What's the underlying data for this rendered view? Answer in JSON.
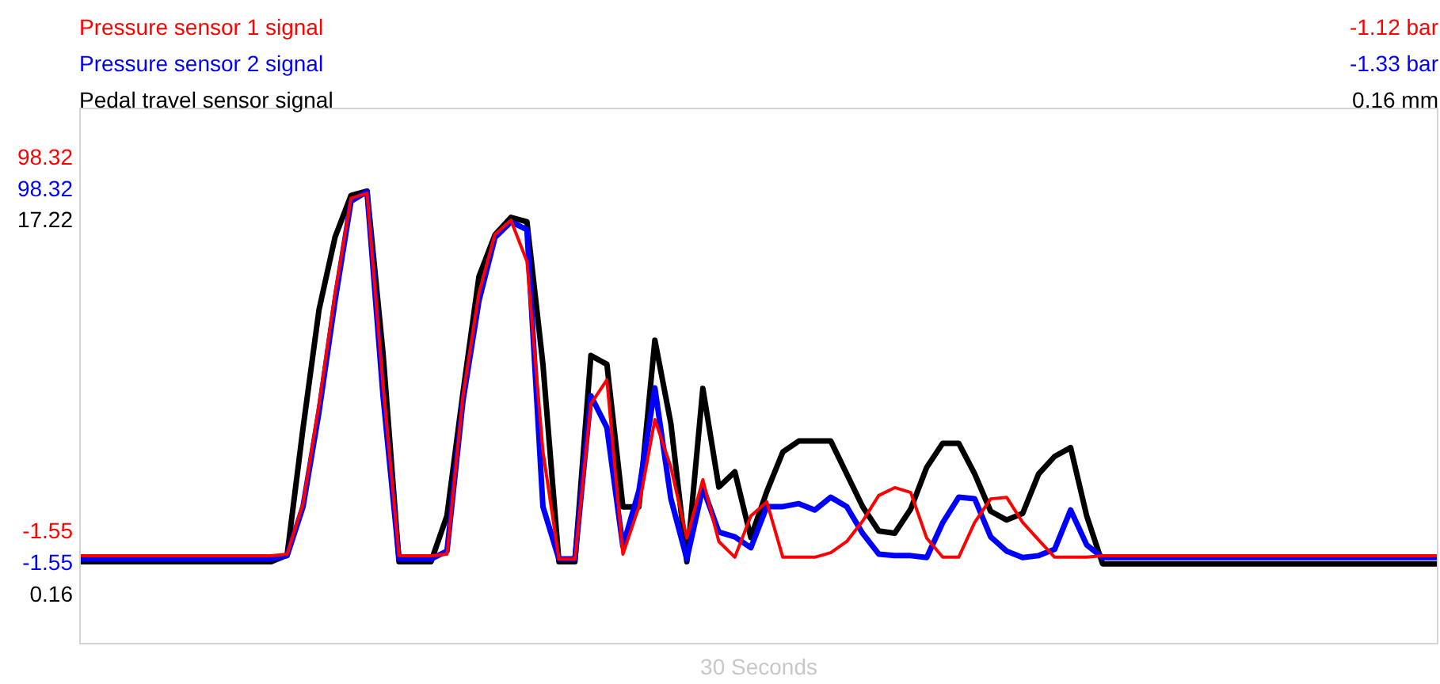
{
  "chart_data": {
    "type": "line",
    "xlabel": "30 Seconds",
    "legend": "top left",
    "annotations": [
      "-1.12 bar",
      "-1.33 bar",
      "0.16 mm"
    ],
    "categories": [
      null,
      null,
      null,
      null,
      null,
      null,
      null,
      null,
      null,
      null,
      null,
      null,
      null,
      null,
      null,
      null,
      null,
      null,
      null,
      null,
      null,
      null,
      null,
      null,
      null,
      null,
      null,
      null,
      null,
      null,
      null,
      null,
      null,
      null,
      null,
      null,
      null,
      null,
      null,
      null,
      null,
      null,
      null,
      null,
      null,
      null,
      null,
      null,
      null,
      null,
      null,
      null,
      null,
      null,
      null,
      null,
      null,
      null,
      null,
      null,
      null,
      null,
      null,
      null,
      null,
      null,
      null,
      null,
      null,
      null,
      null,
      null,
      null,
      null,
      null,
      null,
      null,
      null,
      null,
      null,
      null,
      null,
      null,
      null,
      null,
      null
    ],
    "series": [
      {
        "name": "Pressure sensor 1 signal",
        "color": "#ff0000",
        "values": [
          -7.9,
          -7.9,
          -7.9,
          -7.9,
          -7.9,
          -7.9,
          -7.9,
          -7.9,
          -7.9,
          -7.9,
          -7.9,
          -7.9,
          -7.9,
          -7.5,
          6.1,
          32.7,
          62.3,
          87.7,
          89.0,
          37.8,
          -7.9,
          -7.9,
          -7.9,
          -7.5,
          34.8,
          62.3,
          78.0,
          81.8,
          70.8,
          20.0,
          -8.8,
          -8.8,
          32.7,
          39.1,
          -7.5,
          5.2,
          28.5,
          15.8,
          -3.2,
          12.4,
          -4.1,
          -8.3,
          2.7,
          6.5,
          -8.3,
          -8.3,
          -8.3,
          -7.1,
          -4.1,
          1.4,
          8.2,
          10.3,
          9.0,
          -3.2,
          -8.3,
          -8.3,
          1.0,
          7.3,
          7.7,
          1.0,
          -3.7,
          -8.3,
          -8.3,
          -8.3,
          -7.9,
          -7.9,
          -7.9,
          -7.9,
          -7.9,
          -7.9,
          -7.9,
          -7.9,
          -7.9,
          -7.9,
          -7.9,
          -7.9,
          -7.9,
          -7.9,
          -7.9,
          -7.9,
          -7.9,
          -7.9,
          -7.9,
          -7.9,
          -7.9,
          -7.9
        ]
      },
      {
        "name": "Pressure sensor 2 signal",
        "color": "#0000ff",
        "axis": "y2",
        "values": [
          -0.3,
          -0.3,
          -0.3,
          -0.3,
          -0.3,
          -0.3,
          -0.3,
          -0.3,
          -0.3,
          -0.3,
          -0.3,
          -0.3,
          -0.3,
          0.6,
          13.7,
          39.1,
          68.7,
          95.3,
          97.9,
          43.3,
          -0.3,
          -0.3,
          -0.3,
          1.8,
          42.0,
          68.7,
          85.6,
          89.8,
          87.7,
          13.7,
          -0.3,
          -0.3,
          43.3,
          34.8,
          3.1,
          17.9,
          45.4,
          15.8,
          -0.3,
          18.8,
          6.9,
          5.6,
          2.7,
          13.7,
          13.7,
          14.5,
          12.8,
          16.2,
          13.7,
          6.5,
          1.0,
          0.6,
          0.6,
          0.1,
          9.4,
          16.2,
          15.8,
          5.6,
          1.8,
          0.1,
          0.6,
          2.3,
          12.8,
          3.5,
          0.1,
          0.1,
          0.1,
          0.1,
          0.1,
          0.1,
          0.1,
          0.1,
          0.1,
          0.1,
          0.1,
          0.1,
          0.1,
          0.1,
          0.1,
          0.1,
          0.1,
          0.1,
          0.1,
          0.1,
          0.1,
          0.1
        ]
      },
      {
        "name": "Pedal travel sensor signal",
        "color": "#000000",
        "axis": "y3",
        "values": [
          1.7,
          1.7,
          1.7,
          1.7,
          1.7,
          1.7,
          1.7,
          1.7,
          1.7,
          1.7,
          1.7,
          1.7,
          1.7,
          2.0,
          7.8,
          13.2,
          16.5,
          18.4,
          18.6,
          11.2,
          1.7,
          1.7,
          1.7,
          3.8,
          9.4,
          14.7,
          16.6,
          17.4,
          17.2,
          10.7,
          1.7,
          1.7,
          11.1,
          10.7,
          4.2,
          4.2,
          11.8,
          8.0,
          1.7,
          9.6,
          5.1,
          5.8,
          2.8,
          4.9,
          6.7,
          7.2,
          7.2,
          7.2,
          5.7,
          4.2,
          3.1,
          3.0,
          4.1,
          6.0,
          7.1,
          7.1,
          5.7,
          4.0,
          3.6,
          3.9,
          5.7,
          6.5,
          6.9,
          3.8,
          1.6,
          1.6,
          1.6,
          1.6,
          1.6,
          1.6,
          1.6,
          1.6,
          1.6,
          1.6,
          1.6,
          1.6,
          1.6,
          1.6,
          1.6,
          1.6,
          1.6,
          1.6,
          1.6,
          1.6,
          1.6,
          1.6
        ]
      }
    ],
    "ylim": [
      -31.2,
      111.9
    ],
    "yticks": [
      -1.55,
      98.32
    ],
    "y2lim": [
      -22.7,
      120.3
    ],
    "y2ticks": [
      -1.55,
      98.32
    ],
    "y3lim": [
      -2.0,
      22.4
    ],
    "y3ticks": [
      0.16,
      17.22
    ]
  }
}
